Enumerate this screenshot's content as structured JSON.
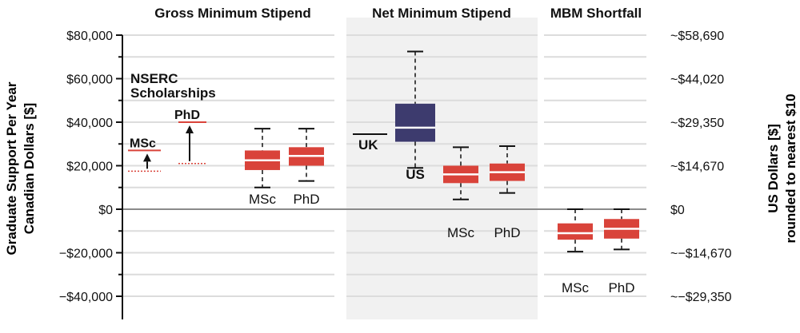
{
  "chart_data": {
    "type": "box",
    "panels": [
      {
        "title": "Gross Minimum Stipend"
      },
      {
        "title": "Net Minimum Stipend"
      },
      {
        "title": "MBM Shortfall"
      }
    ],
    "ylabel_left": [
      "Graduate Support Per Year",
      "Canadian Dollars [$]"
    ],
    "ylabel_right": [
      "US Dollars [$]",
      "rounded to nearest $10"
    ],
    "ylim": [
      -50000,
      80000
    ],
    "yticks_left": [
      {
        "value": 80000,
        "label": "$80,000"
      },
      {
        "value": 60000,
        "label": "$60,000"
      },
      {
        "value": 40000,
        "label": "$40,000"
      },
      {
        "value": 20000,
        "label": "$20,000"
      },
      {
        "value": 0,
        "label": "$0"
      },
      {
        "value": -20000,
        "label": "−$20,000"
      },
      {
        "value": -40000,
        "label": "−$40,000"
      }
    ],
    "yticks_right": [
      {
        "value": 80000,
        "label": "~$58,690"
      },
      {
        "value": 60000,
        "label": "~$44,020"
      },
      {
        "value": 40000,
        "label": "~$29,350"
      },
      {
        "value": 20000,
        "label": "~$14,670"
      },
      {
        "value": 0,
        "label": "$0"
      },
      {
        "value": -20000,
        "label": "~−$14,670"
      },
      {
        "value": -40000,
        "label": "~−$29,350"
      }
    ],
    "nserc_label": [
      "NSERC",
      "Scholarships"
    ],
    "nserc": [
      {
        "label": "MSc",
        "base": 17500,
        "value": 27000
      },
      {
        "label": "PhD",
        "base": 21000,
        "value": 40000
      }
    ],
    "reference_lines": [
      {
        "label": "UK",
        "value": 34500
      }
    ],
    "boxes": [
      {
        "panel": 0,
        "label": "MSc",
        "min": 10000,
        "q1": 18000,
        "median": 22500,
        "q3": 27000,
        "max": 37000
      },
      {
        "panel": 0,
        "label": "PhD",
        "min": 13000,
        "q1": 20000,
        "median": 24500,
        "q3": 28500,
        "max": 37000
      },
      {
        "panel": 1,
        "label": "US",
        "min": 19000,
        "q1": 31000,
        "median": 37500,
        "q3": 48500,
        "max": 72500
      },
      {
        "panel": 1,
        "label": "MSc",
        "min": 4500,
        "q1": 12000,
        "median": 16000,
        "q3": 20000,
        "max": 28500
      },
      {
        "panel": 1,
        "label": "PhD",
        "min": 7500,
        "q1": 13000,
        "median": 17000,
        "q3": 21000,
        "max": 29000
      },
      {
        "panel": 2,
        "label": "MSc",
        "min": -19500,
        "q1": -14000,
        "median": -11000,
        "q3": -6500,
        "max": 0
      },
      {
        "panel": 2,
        "label": "PhD",
        "min": -18500,
        "q1": -13500,
        "median": -9000,
        "q3": -4500,
        "max": 0
      }
    ],
    "colors": {
      "box_red": "#d9433a",
      "box_navy": "#3d3b6e",
      "arrow_red": "#d9433a",
      "grid": "#dcdcdc",
      "zero_line": "#8a8a8a",
      "shade": "#f1f1f1"
    }
  }
}
